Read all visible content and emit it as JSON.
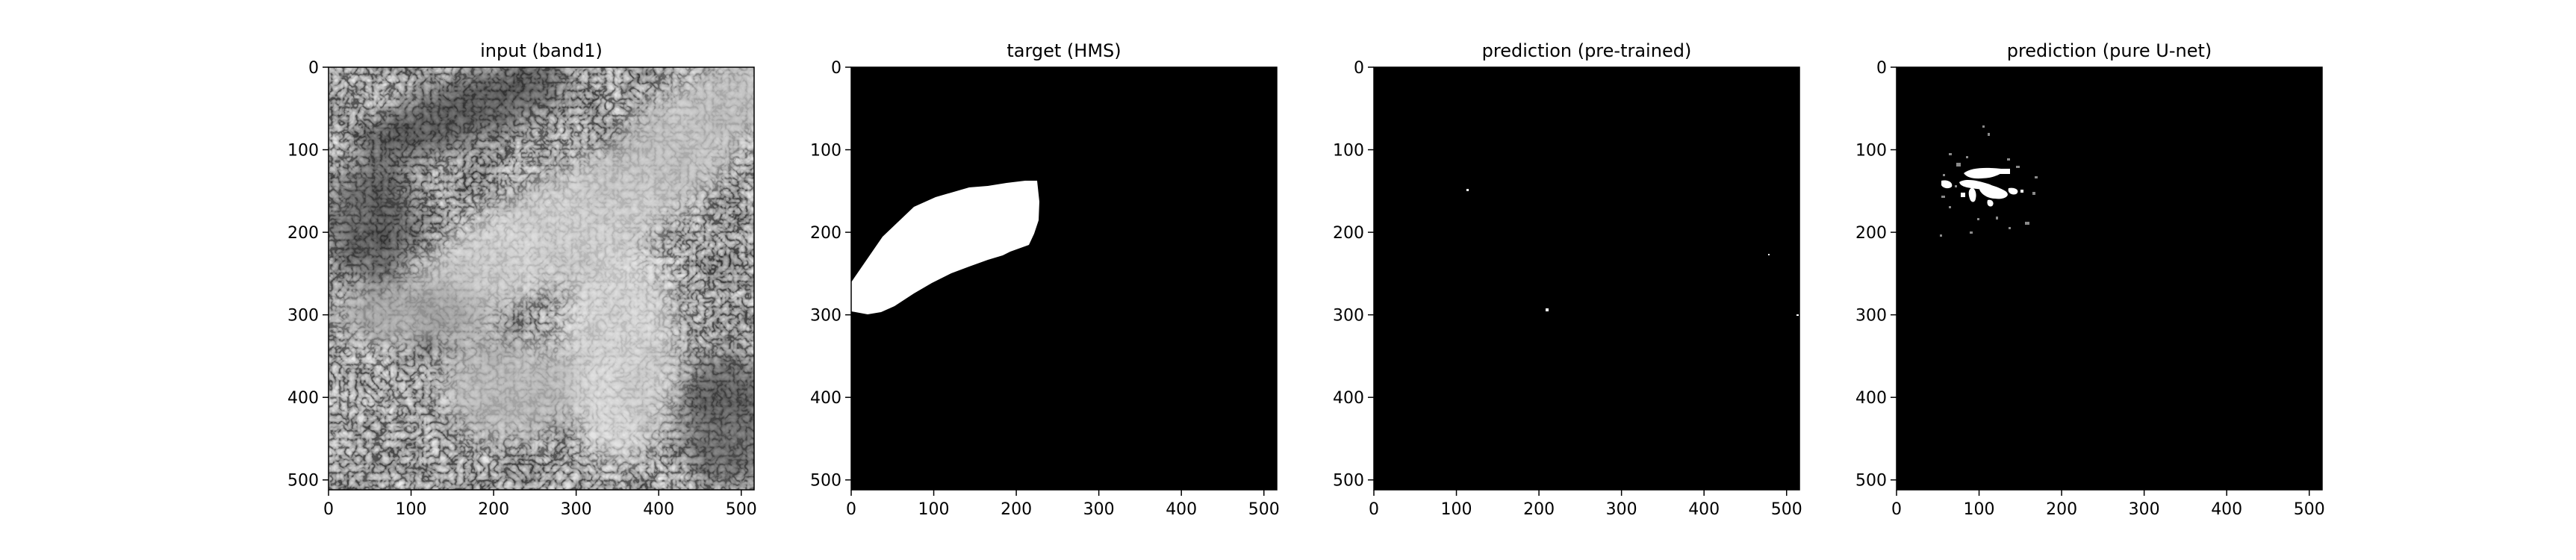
{
  "figure": {
    "panels": [
      {
        "title": "input (band1)",
        "image": "grayscale satellite cloud imagery",
        "x_ticks": [
          "0",
          "100",
          "200",
          "300",
          "400",
          "500"
        ],
        "y_ticks": [
          "0",
          "100",
          "200",
          "300",
          "400",
          "500"
        ]
      },
      {
        "title": "target (HMS)",
        "image": "binary smoke mask with a single white polygon",
        "x_ticks": [
          "0",
          "100",
          "200",
          "300",
          "400",
          "500"
        ],
        "y_ticks": [
          "0",
          "100",
          "200",
          "300",
          "400",
          "500"
        ]
      },
      {
        "title": "prediction (pre-trained)",
        "image": "near-empty binary prediction with isolated white specks",
        "x_ticks": [
          "0",
          "100",
          "200",
          "300",
          "400",
          "500"
        ],
        "y_ticks": [
          "0",
          "100",
          "200",
          "300",
          "400",
          "500"
        ]
      },
      {
        "title": "prediction (pure U-net)",
        "image": "binary prediction with a white blob cluster near the upper left",
        "x_ticks": [
          "0",
          "100",
          "200",
          "300",
          "400",
          "500"
        ],
        "y_ticks": [
          "0",
          "100",
          "200",
          "300",
          "400",
          "500"
        ]
      }
    ],
    "colors": {
      "background": "#ffffff",
      "mask_bg": "#000000",
      "mask_fg": "#ffffff",
      "axis": "#000000"
    }
  }
}
